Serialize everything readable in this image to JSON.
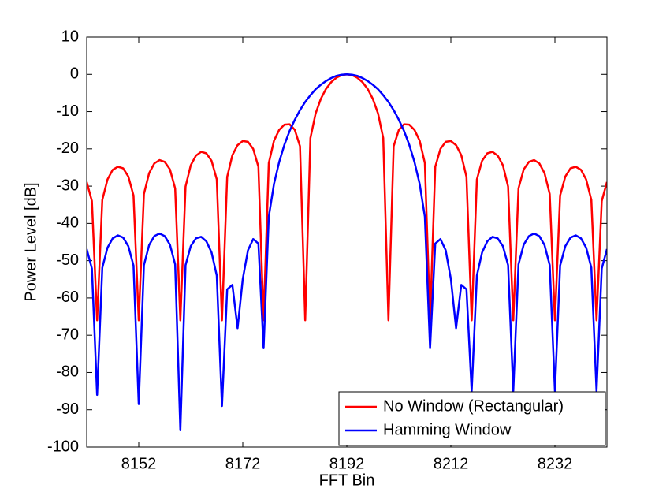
{
  "chart_data": {
    "type": "line",
    "xlabel": "FFT Bin",
    "ylabel": "Power Level [dB]",
    "x": [
      8142,
      8143,
      8144,
      8145,
      8146,
      8147,
      8148,
      8149,
      8150,
      8151,
      8152,
      8153,
      8154,
      8155,
      8156,
      8157,
      8158,
      8159,
      8160,
      8161,
      8162,
      8163,
      8164,
      8165,
      8166,
      8167,
      8168,
      8169,
      8170,
      8171,
      8172,
      8173,
      8174,
      8175,
      8176,
      8177,
      8178,
      8179,
      8180,
      8181,
      8182,
      8183,
      8184,
      8185,
      8186,
      8187,
      8188,
      8189,
      8190,
      8191,
      8192,
      8193,
      8194,
      8195,
      8196,
      8197,
      8198,
      8199,
      8200,
      8201,
      8202,
      8203,
      8204,
      8205,
      8206,
      8207,
      8208,
      8209,
      8210,
      8211,
      8212,
      8213,
      8214,
      8215,
      8216,
      8217,
      8218,
      8219,
      8220,
      8221,
      8222,
      8223,
      8224,
      8225,
      8226,
      8227,
      8228,
      8229,
      8230,
      8231,
      8232,
      8233,
      8234,
      8235,
      8236,
      8237,
      8238,
      8239,
      8240,
      8241,
      8242
    ],
    "series": [
      {
        "name": "No Window (Rectangular)",
        "color": "#ff0000",
        "values": [
          -28.9,
          -34.0,
          -66,
          -33.7,
          -28.2,
          -25.6,
          -24.8,
          -25.2,
          -27.4,
          -32.5,
          -66,
          -32.1,
          -26.5,
          -23.9,
          -23.0,
          -23.5,
          -25.5,
          -30.6,
          -66,
          -30.1,
          -24.4,
          -21.8,
          -20.8,
          -21.2,
          -23.2,
          -28.2,
          -66,
          -27.5,
          -21.7,
          -19.0,
          -17.9,
          -18.1,
          -20.0,
          -24.8,
          -66,
          -23.8,
          -17.8,
          -14.9,
          -13.5,
          -13.4,
          -14.9,
          -19.3,
          -66,
          -17.1,
          -10.5,
          -6.6,
          -3.9,
          -2.1,
          -0.9,
          -0.2,
          0,
          -0.2,
          -0.9,
          -2.1,
          -3.9,
          -6.6,
          -10.5,
          -17.1,
          -66,
          -19.3,
          -14.9,
          -13.4,
          -13.5,
          -14.9,
          -17.8,
          -23.8,
          -66,
          -24.8,
          -20.0,
          -18.1,
          -17.9,
          -19.0,
          -21.7,
          -27.5,
          -66,
          -28.2,
          -23.2,
          -21.2,
          -20.8,
          -21.8,
          -24.4,
          -30.1,
          -66,
          -30.6,
          -25.5,
          -23.5,
          -23.0,
          -23.9,
          -26.5,
          -32.1,
          -66,
          -32.5,
          -27.4,
          -25.2,
          -24.8,
          -25.6,
          -28.2,
          -33.7,
          -66,
          -34.0,
          -28.9
        ]
      },
      {
        "name": "Hamming Window",
        "color": "#0000ff",
        "values": [
          -46.9,
          -52.1,
          -86,
          -51.9,
          -46.5,
          -44.0,
          -43.2,
          -43.8,
          -46.1,
          -51.3,
          -88.5,
          -51.2,
          -45.8,
          -43.4,
          -42.7,
          -43.4,
          -45.7,
          -51.0,
          -95.5,
          -51.2,
          -46.1,
          -44.0,
          -43.6,
          -44.8,
          -47.8,
          -54.0,
          -89,
          -57.7,
          -56.5,
          -68.1,
          -54.9,
          -47.2,
          -44.2,
          -45.4,
          -73.5,
          -38.2,
          -29.4,
          -23.5,
          -18.9,
          -15.2,
          -12.2,
          -9.6,
          -7.4,
          -5.6,
          -4.0,
          -2.8,
          -1.8,
          -1.0,
          -0.4,
          -0.1,
          0,
          -0.1,
          -0.4,
          -1.0,
          -1.8,
          -2.8,
          -4.0,
          -5.6,
          -7.4,
          -9.6,
          -12.2,
          -15.2,
          -18.9,
          -23.5,
          -29.4,
          -38.2,
          -73.5,
          -45.4,
          -44.2,
          -47.2,
          -54.9,
          -68.1,
          -56.5,
          -57.7,
          -85,
          -54.0,
          -47.8,
          -44.8,
          -43.6,
          -44.0,
          -46.1,
          -51.2,
          -85,
          -51.0,
          -45.7,
          -43.4,
          -42.7,
          -43.4,
          -45.8,
          -51.2,
          -85,
          -51.3,
          -46.1,
          -43.8,
          -43.2,
          -44.0,
          -46.5,
          -51.9,
          -85,
          -52.1,
          -46.9
        ]
      }
    ],
    "xlim": [
      8142,
      8242
    ],
    "xticks": [
      8152,
      8172,
      8192,
      8212,
      8232
    ],
    "ylim": [
      -100,
      10
    ],
    "yticks": [
      -100,
      -90,
      -80,
      -70,
      -60,
      -50,
      -40,
      -30,
      -20,
      -10,
      0,
      10
    ],
    "grid": false,
    "legend": "lower right"
  }
}
